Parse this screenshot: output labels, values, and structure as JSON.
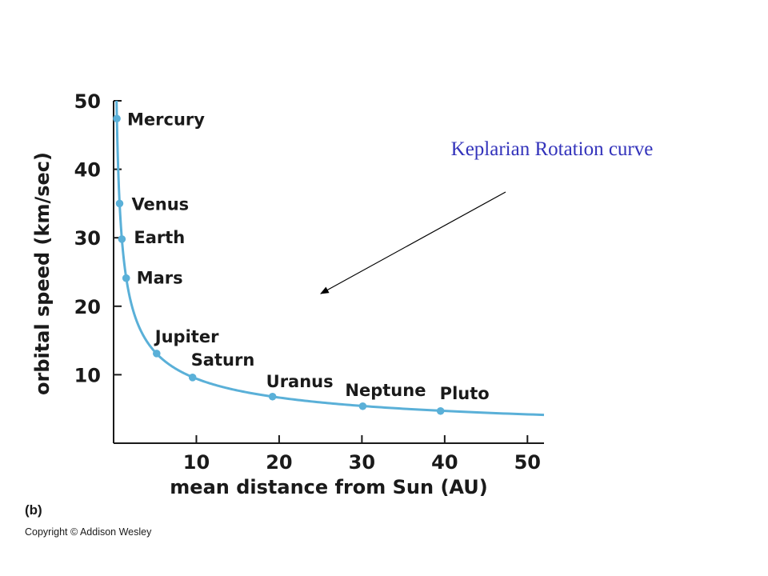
{
  "chart_data": {
    "type": "line",
    "title": "",
    "xlabel": "mean distance from Sun (AU)",
    "ylabel": "orbital speed (km/sec)",
    "xlim": [
      0,
      52
    ],
    "ylim": [
      0,
      50
    ],
    "x_ticks": [
      10,
      20,
      30,
      40,
      50
    ],
    "y_ticks": [
      10,
      20,
      30,
      40,
      50
    ],
    "grid": false,
    "series": [
      {
        "color": "#5ab0d8",
        "points": [
          {
            "label": "Mercury",
            "x": 0.39,
            "y": 47.4
          },
          {
            "label": "Venus",
            "x": 0.72,
            "y": 35.0
          },
          {
            "label": "Earth",
            "x": 1.0,
            "y": 29.8
          },
          {
            "label": "Mars",
            "x": 1.52,
            "y": 24.1
          },
          {
            "label": "Jupiter",
            "x": 5.2,
            "y": 13.1
          },
          {
            "label": "Saturn",
            "x": 9.54,
            "y": 9.6
          },
          {
            "label": "Uranus",
            "x": 19.2,
            "y": 6.8
          },
          {
            "label": "Neptune",
            "x": 30.1,
            "y": 5.4
          },
          {
            "label": "Pluto",
            "x": 39.5,
            "y": 4.7
          }
        ]
      }
    ],
    "curve_constant": 29.8,
    "annotation": {
      "text": "Keplarian Rotation curve",
      "color": "#3333bb"
    }
  },
  "panel_label": "(b)",
  "copyright": "Copyright © Addison Wesley"
}
